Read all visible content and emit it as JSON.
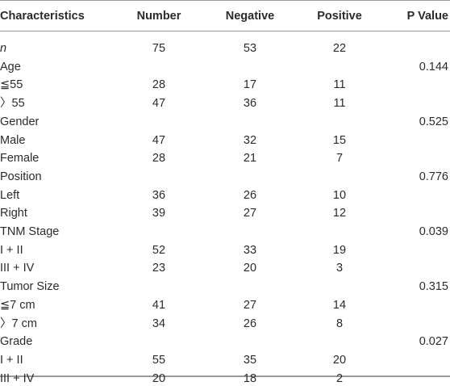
{
  "table": {
    "header": [
      "Characteristics",
      "Number",
      "Negative",
      "Positive",
      "P Value"
    ],
    "rows": [
      [
        "n",
        "75",
        "53",
        "22",
        null
      ],
      [
        "Age",
        null,
        null,
        null,
        "0.144"
      ],
      [
        "≦55",
        "28",
        "17",
        "11",
        null
      ],
      [
        "〉55",
        "47",
        "36",
        "11",
        null
      ],
      [
        "Gender",
        null,
        null,
        null,
        "0.525"
      ],
      [
        "Male",
        "47",
        "32",
        "15",
        null
      ],
      [
        "Female",
        "28",
        "21",
        "7",
        null
      ],
      [
        "Position",
        null,
        null,
        null,
        "0.776"
      ],
      [
        "Left",
        "36",
        "26",
        "10",
        null
      ],
      [
        "Right",
        "39",
        "27",
        "12",
        null
      ],
      [
        "TNM Stage",
        null,
        null,
        null,
        "0.039"
      ],
      [
        "I + II",
        "52",
        "33",
        "19",
        null
      ],
      [
        "III + IV",
        "23",
        "20",
        "3",
        null
      ],
      [
        "Tumor Size",
        null,
        null,
        null,
        "0.315"
      ],
      [
        "≦7 cm",
        "41",
        "27",
        "14",
        null
      ],
      [
        "〉7 cm",
        "34",
        "26",
        "8",
        null
      ],
      [
        "Grade",
        null,
        null,
        null,
        "0.027"
      ],
      [
        "I + II",
        "55",
        "35",
        "20",
        null
      ],
      [
        "III + IV",
        "20",
        "18",
        "2",
        null
      ]
    ]
  }
}
